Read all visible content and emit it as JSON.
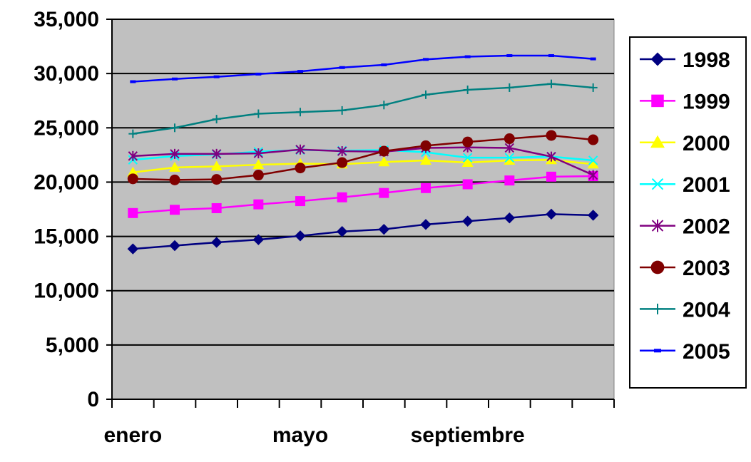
{
  "chart_data": {
    "type": "line",
    "title": "",
    "xlabel": "",
    "ylabel": "",
    "categories": [
      "enero",
      "",
      "",
      "",
      "mayo",
      "",
      "",
      "",
      "septiembre",
      "",
      "",
      ""
    ],
    "ylim": [
      0,
      35000
    ],
    "yticks": [
      "0",
      "5,000",
      "10,000",
      "15,000",
      "20,000",
      "25,000",
      "30,000",
      "35,000"
    ],
    "grid": "horizontal",
    "legend_position": "right",
    "plot_background": "#c0c0c0",
    "series": [
      {
        "name": "1998",
        "color": "#000080",
        "marker": "diamond",
        "values": [
          13850,
          14150,
          14450,
          14700,
          15050,
          15450,
          15650,
          16100,
          16400,
          16700,
          17050,
          16950
        ]
      },
      {
        "name": "1999",
        "color": "#ff00ff",
        "marker": "square",
        "values": [
          17150,
          17450,
          17600,
          17950,
          18250,
          18600,
          19000,
          19450,
          19800,
          20150,
          20500,
          20550
        ]
      },
      {
        "name": "2000",
        "color": "#ffff00",
        "marker": "triangle",
        "values": [
          20900,
          21350,
          21450,
          21600,
          21700,
          21650,
          21850,
          22000,
          21800,
          22000,
          22050,
          21650
        ]
      },
      {
        "name": "2001",
        "color": "#00ffff",
        "marker": "x",
        "values": [
          22050,
          22400,
          22550,
          22800,
          22950,
          22900,
          22950,
          22750,
          22250,
          22250,
          22350,
          22000
        ]
      },
      {
        "name": "2002",
        "color": "#800080",
        "marker": "star",
        "values": [
          22400,
          22600,
          22600,
          22650,
          23000,
          22850,
          22800,
          23150,
          23200,
          23150,
          22350,
          20650
        ]
      },
      {
        "name": "2003",
        "color": "#800000",
        "marker": "circle",
        "values": [
          20300,
          20200,
          20250,
          20650,
          21300,
          21800,
          22850,
          23350,
          23700,
          24000,
          24300,
          23900
        ]
      },
      {
        "name": "2004",
        "color": "#008080",
        "marker": "plus",
        "values": [
          24450,
          25000,
          25800,
          26300,
          26450,
          26600,
          27100,
          28050,
          28500,
          28700,
          29050,
          28700
        ]
      },
      {
        "name": "2005",
        "color": "#0000ff",
        "marker": "dash",
        "values": [
          29250,
          29500,
          29700,
          29950,
          30200,
          30550,
          30800,
          31300,
          31550,
          31650,
          31650,
          31350
        ]
      }
    ]
  }
}
